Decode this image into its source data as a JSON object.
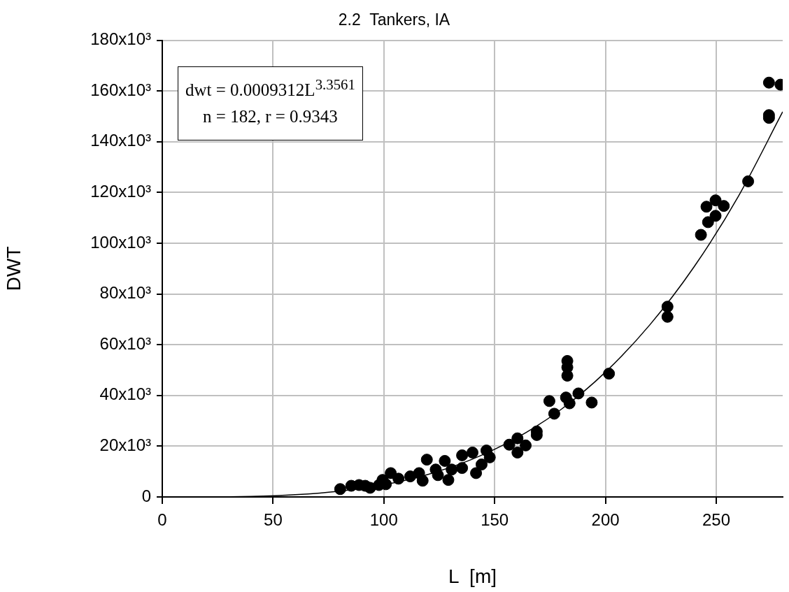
{
  "chart_data": {
    "type": "scatter",
    "title": "2.2  Tankers, IA",
    "xlabel": "L  [m]",
    "ylabel": "DWT",
    "annotations": [
      "dwt = 0.0009312L$^{3.3561}$",
      "n = 182, r = 0.9343"
    ],
    "xlim": [
      0,
      280
    ],
    "xticks": [
      0,
      50,
      100,
      150,
      200,
      250
    ],
    "ylim": [
      0,
      180000
    ],
    "yticks": [
      0,
      {
        "value": 20000,
        "label": "20x10³"
      },
      {
        "value": 40000,
        "label": "40x10³"
      },
      {
        "value": 60000,
        "label": "60x10³"
      },
      {
        "value": 80000,
        "label": "80x10³"
      },
      {
        "value": 100000,
        "label": "100x10³"
      },
      {
        "value": 120000,
        "label": "120x10³"
      },
      {
        "value": 140000,
        "label": "140x10³"
      },
      {
        "value": 160000,
        "label": "160x10³"
      },
      {
        "value": 180000,
        "label": "180x10³"
      }
    ],
    "grid": true,
    "series": [
      {
        "type": "scatter",
        "color": "#000000",
        "marker": "circle",
        "x": [
          80.3,
          85.3,
          88.8,
          91.6,
          93.8,
          97.8,
          99.4,
          100.9,
          103.1,
          106.6,
          111.9,
          115.9,
          117.5,
          119.4,
          123.4,
          124.4,
          127.5,
          129.1,
          130.6,
          135.3,
          135.3,
          140,
          141.6,
          144.1,
          146.3,
          147.8,
          156.6,
          160.3,
          160.3,
          164,
          169,
          169,
          174.7,
          176.9,
          182.2,
          182.8,
          182.8,
          182.8,
          183.8,
          187.8,
          193.8,
          201.6,
          228,
          228,
          243.1,
          245.6,
          246.3,
          249.7,
          249.7,
          253.4,
          264.4,
          273.8,
          273.8,
          273.8,
          279
        ],
        "values": [
          3100,
          4400,
          4700,
          4400,
          3600,
          4700,
          6700,
          5000,
          9400,
          7200,
          8100,
          9400,
          6400,
          14700,
          10800,
          8600,
          14200,
          6700,
          10800,
          16400,
          11400,
          17500,
          9400,
          12800,
          18300,
          15600,
          20600,
          23100,
          17500,
          20300,
          24400,
          25800,
          37800,
          32800,
          39200,
          53600,
          51100,
          47800,
          36900,
          40800,
          37200,
          48600,
          75000,
          71000,
          103300,
          114400,
          108300,
          116900,
          110800,
          114700,
          124400,
          149400,
          150500,
          163300,
          162500
        ]
      },
      {
        "type": "line",
        "color": "#000000",
        "marker": "none",
        "x": [
          0,
          20,
          40,
          60,
          80,
          100,
          120,
          140,
          160,
          180,
          200,
          220,
          240,
          260,
          280
        ],
        "values": [
          0,
          0,
          200,
          900,
          2300,
          4800,
          8900,
          14900,
          23300,
          34500,
          49200,
          67800,
          90700,
          118500,
          151800
        ]
      }
    ]
  }
}
